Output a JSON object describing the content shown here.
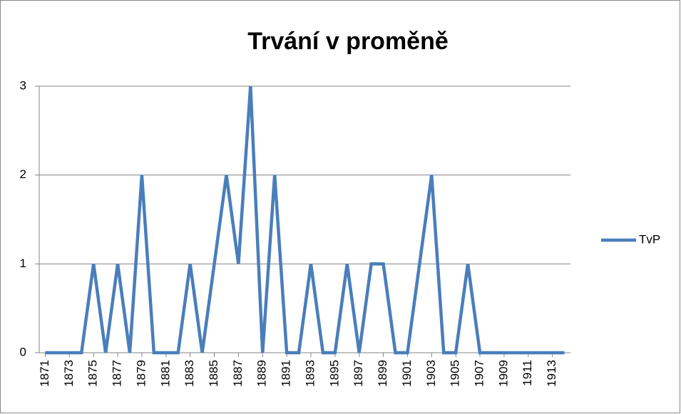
{
  "chart_data": {
    "type": "line",
    "title": "Trvání v proměně",
    "x": [
      1871,
      1872,
      1873,
      1874,
      1875,
      1876,
      1877,
      1878,
      1879,
      1880,
      1881,
      1882,
      1883,
      1884,
      1885,
      1886,
      1887,
      1888,
      1889,
      1890,
      1891,
      1892,
      1893,
      1894,
      1895,
      1896,
      1897,
      1898,
      1899,
      1900,
      1901,
      1902,
      1903,
      1904,
      1905,
      1906,
      1907,
      1908,
      1909,
      1910,
      1911,
      1912,
      1913,
      1914
    ],
    "series": [
      {
        "name": "TvP",
        "color": "#4a7ebb",
        "values": [
          0,
          0,
          0,
          0,
          1,
          0,
          1,
          0,
          2,
          0,
          0,
          0,
          1,
          0,
          1,
          2,
          1,
          3,
          0,
          2,
          0,
          0,
          1,
          0,
          0,
          1,
          0,
          1,
          1,
          0,
          0,
          1,
          2,
          0,
          0,
          1,
          0,
          0,
          0,
          0,
          0,
          0,
          0,
          0
        ]
      }
    ],
    "xlim": [
      1870.5,
      1914.5
    ],
    "xticks": [
      1871,
      1873,
      1875,
      1877,
      1879,
      1881,
      1883,
      1885,
      1887,
      1889,
      1891,
      1893,
      1895,
      1897,
      1899,
      1901,
      1903,
      1905,
      1907,
      1909,
      1911,
      1913
    ],
    "ylim": [
      0,
      3
    ],
    "yticks": [
      0,
      1,
      2,
      3
    ],
    "grid": true,
    "legend": "right"
  }
}
